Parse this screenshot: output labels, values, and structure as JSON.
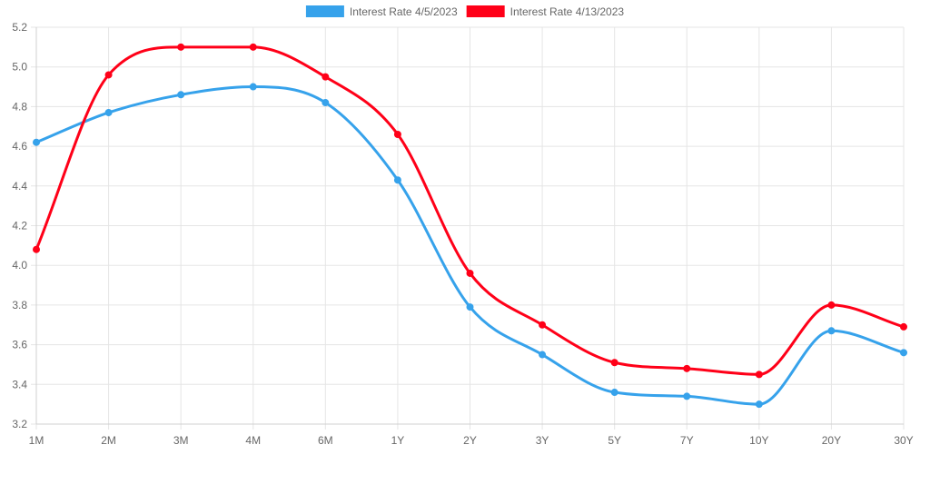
{
  "chart_data": {
    "type": "line",
    "title": "",
    "xlabel": "",
    "ylabel": "",
    "categories": [
      "1M",
      "2M",
      "3M",
      "4M",
      "6M",
      "1Y",
      "2Y",
      "3Y",
      "5Y",
      "7Y",
      "10Y",
      "20Y",
      "30Y"
    ],
    "yticks": [
      "3.2",
      "3.4",
      "3.6",
      "3.8",
      "4.0",
      "4.2",
      "4.4",
      "4.6",
      "4.8",
      "5.0",
      "5.2"
    ],
    "ylim": [
      3.2,
      5.2
    ],
    "grid": true,
    "legend_position": "top",
    "series": [
      {
        "name": "Interest Rate 4/5/2023",
        "color": "#36a2eb",
        "values": [
          4.62,
          4.77,
          4.86,
          4.9,
          4.82,
          4.43,
          3.79,
          3.55,
          3.36,
          3.34,
          3.3,
          3.67,
          3.56
        ]
      },
      {
        "name": "Interest Rate 4/13/2023",
        "color": "#ff0018",
        "values": [
          4.08,
          4.96,
          5.1,
          5.1,
          4.95,
          4.66,
          3.96,
          3.7,
          3.51,
          3.48,
          3.45,
          3.8,
          3.69
        ]
      }
    ]
  }
}
